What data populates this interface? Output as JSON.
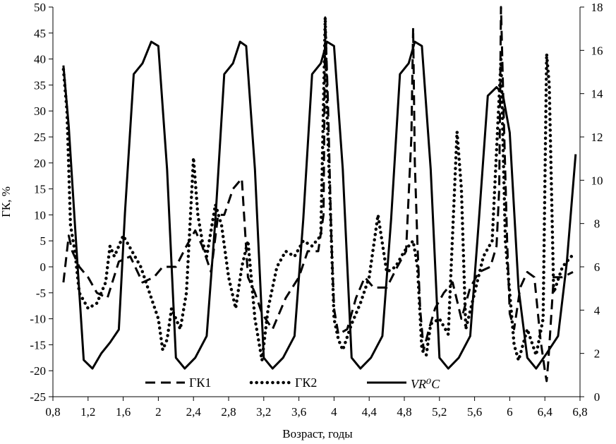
{
  "chart_data": {
    "type": "line",
    "xlabel": "Возраст, годы",
    "ylabel": "ГК, %",
    "y2label": "",
    "xlim": [
      0.8,
      6.8
    ],
    "xticks": [
      "0,8",
      "1,2",
      "1,6",
      "2",
      "2,4",
      "2,8",
      "3,2",
      "3,6",
      "4",
      "4,4",
      "4,8",
      "5,2",
      "5,6",
      "6",
      "6,4",
      "6,8"
    ],
    "xtick_values": [
      0.8,
      1.2,
      1.6,
      2.0,
      2.4,
      2.8,
      3.2,
      3.6,
      4.0,
      4.4,
      4.8,
      5.2,
      5.6,
      6.0,
      6.4,
      6.8
    ],
    "ylim": [
      -25,
      50
    ],
    "yticks": [
      "-25",
      "-20",
      "-15",
      "-10",
      "-5",
      "0",
      "5",
      "10",
      "15",
      "20",
      "25",
      "30",
      "35",
      "40",
      "45",
      "50"
    ],
    "ytick_values": [
      -25,
      -20,
      -15,
      -10,
      -5,
      0,
      5,
      10,
      15,
      20,
      25,
      30,
      35,
      40,
      45,
      50
    ],
    "y2lim": [
      0,
      18
    ],
    "y2ticks": [
      "0",
      "2",
      "4",
      "6",
      "8",
      "10",
      "12",
      "14",
      "16",
      "18"
    ],
    "y2tick_values": [
      0,
      2,
      4,
      6,
      8,
      10,
      12,
      14,
      16,
      18
    ],
    "grid": false,
    "legend_position": "bottom-inside",
    "series": [
      {
        "name": "ГК1",
        "style": "dashed",
        "axis": "left",
        "color": "#000000",
        "x": [
          0.92,
          0.98,
          1.02,
          1.1,
          1.2,
          1.3,
          1.42,
          1.55,
          1.68,
          1.82,
          1.95,
          2.05,
          2.2,
          2.32,
          2.42,
          2.5,
          2.6,
          2.68,
          2.75,
          2.85,
          2.95,
          3.02,
          3.1,
          3.18,
          3.3,
          3.45,
          3.6,
          3.7,
          3.82,
          3.88,
          3.9,
          3.93,
          3.97,
          4.0,
          4.05,
          4.15,
          4.25,
          4.35,
          4.45,
          4.6,
          4.72,
          4.82,
          4.88,
          4.9,
          4.92,
          4.95,
          4.98,
          5.02,
          5.08,
          5.15,
          5.25,
          5.35,
          5.45,
          5.55,
          5.65,
          5.78,
          5.85,
          5.88,
          5.9,
          5.93,
          5.97,
          6.0,
          6.05,
          6.12,
          6.2,
          6.28,
          6.35,
          6.4,
          6.42,
          6.44,
          6.5,
          6.6,
          6.72
        ],
        "values": [
          -3,
          6,
          3,
          0,
          -2,
          -5,
          -6,
          1,
          2,
          -3,
          -2,
          0,
          0,
          4,
          7,
          4,
          -1,
          10,
          10,
          15,
          17,
          -2,
          -5,
          -9,
          -12,
          -6,
          -2,
          3,
          3,
          10,
          48,
          32,
          5,
          -8,
          -13,
          -12,
          -6,
          -2,
          -4,
          -4,
          0,
          3,
          25,
          46,
          20,
          4,
          -8,
          -16,
          -12,
          -8,
          -5,
          -3,
          -10,
          -4,
          -1,
          0,
          4,
          15,
          50,
          30,
          5,
          -9,
          -12,
          -4,
          -1,
          -2,
          -14,
          -20,
          -22,
          -18,
          -2,
          -2,
          -1
        ]
      },
      {
        "name": "ГК2",
        "style": "dotted",
        "axis": "left",
        "color": "#000000",
        "x": [
          0.92,
          0.96,
          1.0,
          1.05,
          1.1,
          1.2,
          1.3,
          1.4,
          1.45,
          1.5,
          1.6,
          1.7,
          1.8,
          1.9,
          2.0,
          2.05,
          2.1,
          2.15,
          2.25,
          2.32,
          2.4,
          2.45,
          2.5,
          2.55,
          2.65,
          2.72,
          2.8,
          2.88,
          2.95,
          3.02,
          3.1,
          3.18,
          3.25,
          3.35,
          3.45,
          3.55,
          3.65,
          3.75,
          3.85,
          3.9,
          3.92,
          3.97,
          4.0,
          4.05,
          4.1,
          4.2,
          4.3,
          4.4,
          4.5,
          4.6,
          4.7,
          4.8,
          4.9,
          4.95,
          5.0,
          5.05,
          5.1,
          5.2,
          5.3,
          5.4,
          5.45,
          5.5,
          5.6,
          5.7,
          5.8,
          5.9,
          5.95,
          6.0,
          6.05,
          6.1,
          6.2,
          6.3,
          6.38,
          6.42,
          6.45,
          6.5,
          6.6,
          6.7,
          6.75
        ],
        "values": [
          38,
          30,
          8,
          3,
          -5,
          -8,
          -7,
          -3,
          4,
          2,
          6,
          3,
          0,
          -5,
          -10,
          -16,
          -14,
          -8,
          -12,
          -5,
          21,
          10,
          5,
          2,
          12,
          8,
          -2,
          -8,
          0,
          5,
          -10,
          -18,
          -8,
          0,
          3,
          2,
          5,
          4,
          6,
          48,
          30,
          5,
          -10,
          -14,
          -16,
          -11,
          -7,
          -2,
          10,
          -1,
          0,
          3,
          5,
          0,
          -16,
          -17,
          -11,
          -10,
          -13,
          26,
          15,
          -12,
          -5,
          2,
          5,
          40,
          5,
          -5,
          -15,
          -18,
          -12,
          -17,
          -10,
          41,
          35,
          -5,
          0,
          2,
          2
        ]
      },
      {
        "name": "VR⁰C",
        "style": "solid",
        "axis": "right",
        "color": "#000000",
        "x": [
          0.92,
          0.98,
          1.05,
          1.15,
          1.25,
          1.35,
          1.45,
          1.55,
          1.62,
          1.72,
          1.82,
          1.92,
          2.0,
          2.1,
          2.2,
          2.3,
          2.42,
          2.55,
          2.65,
          2.75,
          2.85,
          2.93,
          3.0,
          3.1,
          3.2,
          3.3,
          3.42,
          3.55,
          3.65,
          3.75,
          3.85,
          3.92,
          4.0,
          4.1,
          4.2,
          4.3,
          4.42,
          4.55,
          4.65,
          4.75,
          4.85,
          4.92,
          5.0,
          5.1,
          5.2,
          5.3,
          5.42,
          5.55,
          5.65,
          5.75,
          5.85,
          5.92,
          6.0,
          6.1,
          6.2,
          6.3,
          6.42,
          6.55,
          6.65,
          6.75
        ],
        "values": [
          15.3,
          12.5,
          8.0,
          1.7,
          1.3,
          2.0,
          2.5,
          3.1,
          8.5,
          14.9,
          15.4,
          16.4,
          16.2,
          10.5,
          1.8,
          1.3,
          1.8,
          2.8,
          8.2,
          14.9,
          15.4,
          16.4,
          16.2,
          10.5,
          1.8,
          1.3,
          1.8,
          2.8,
          8.2,
          14.9,
          15.4,
          16.4,
          16.2,
          10.5,
          1.8,
          1.3,
          1.8,
          2.8,
          8.2,
          14.9,
          15.4,
          16.4,
          16.2,
          10.5,
          1.8,
          1.3,
          1.8,
          2.8,
          8.2,
          13.9,
          14.3,
          14.0,
          12.2,
          5.0,
          1.8,
          1.3,
          2.0,
          2.8,
          6.2,
          11.2
        ]
      }
    ]
  }
}
